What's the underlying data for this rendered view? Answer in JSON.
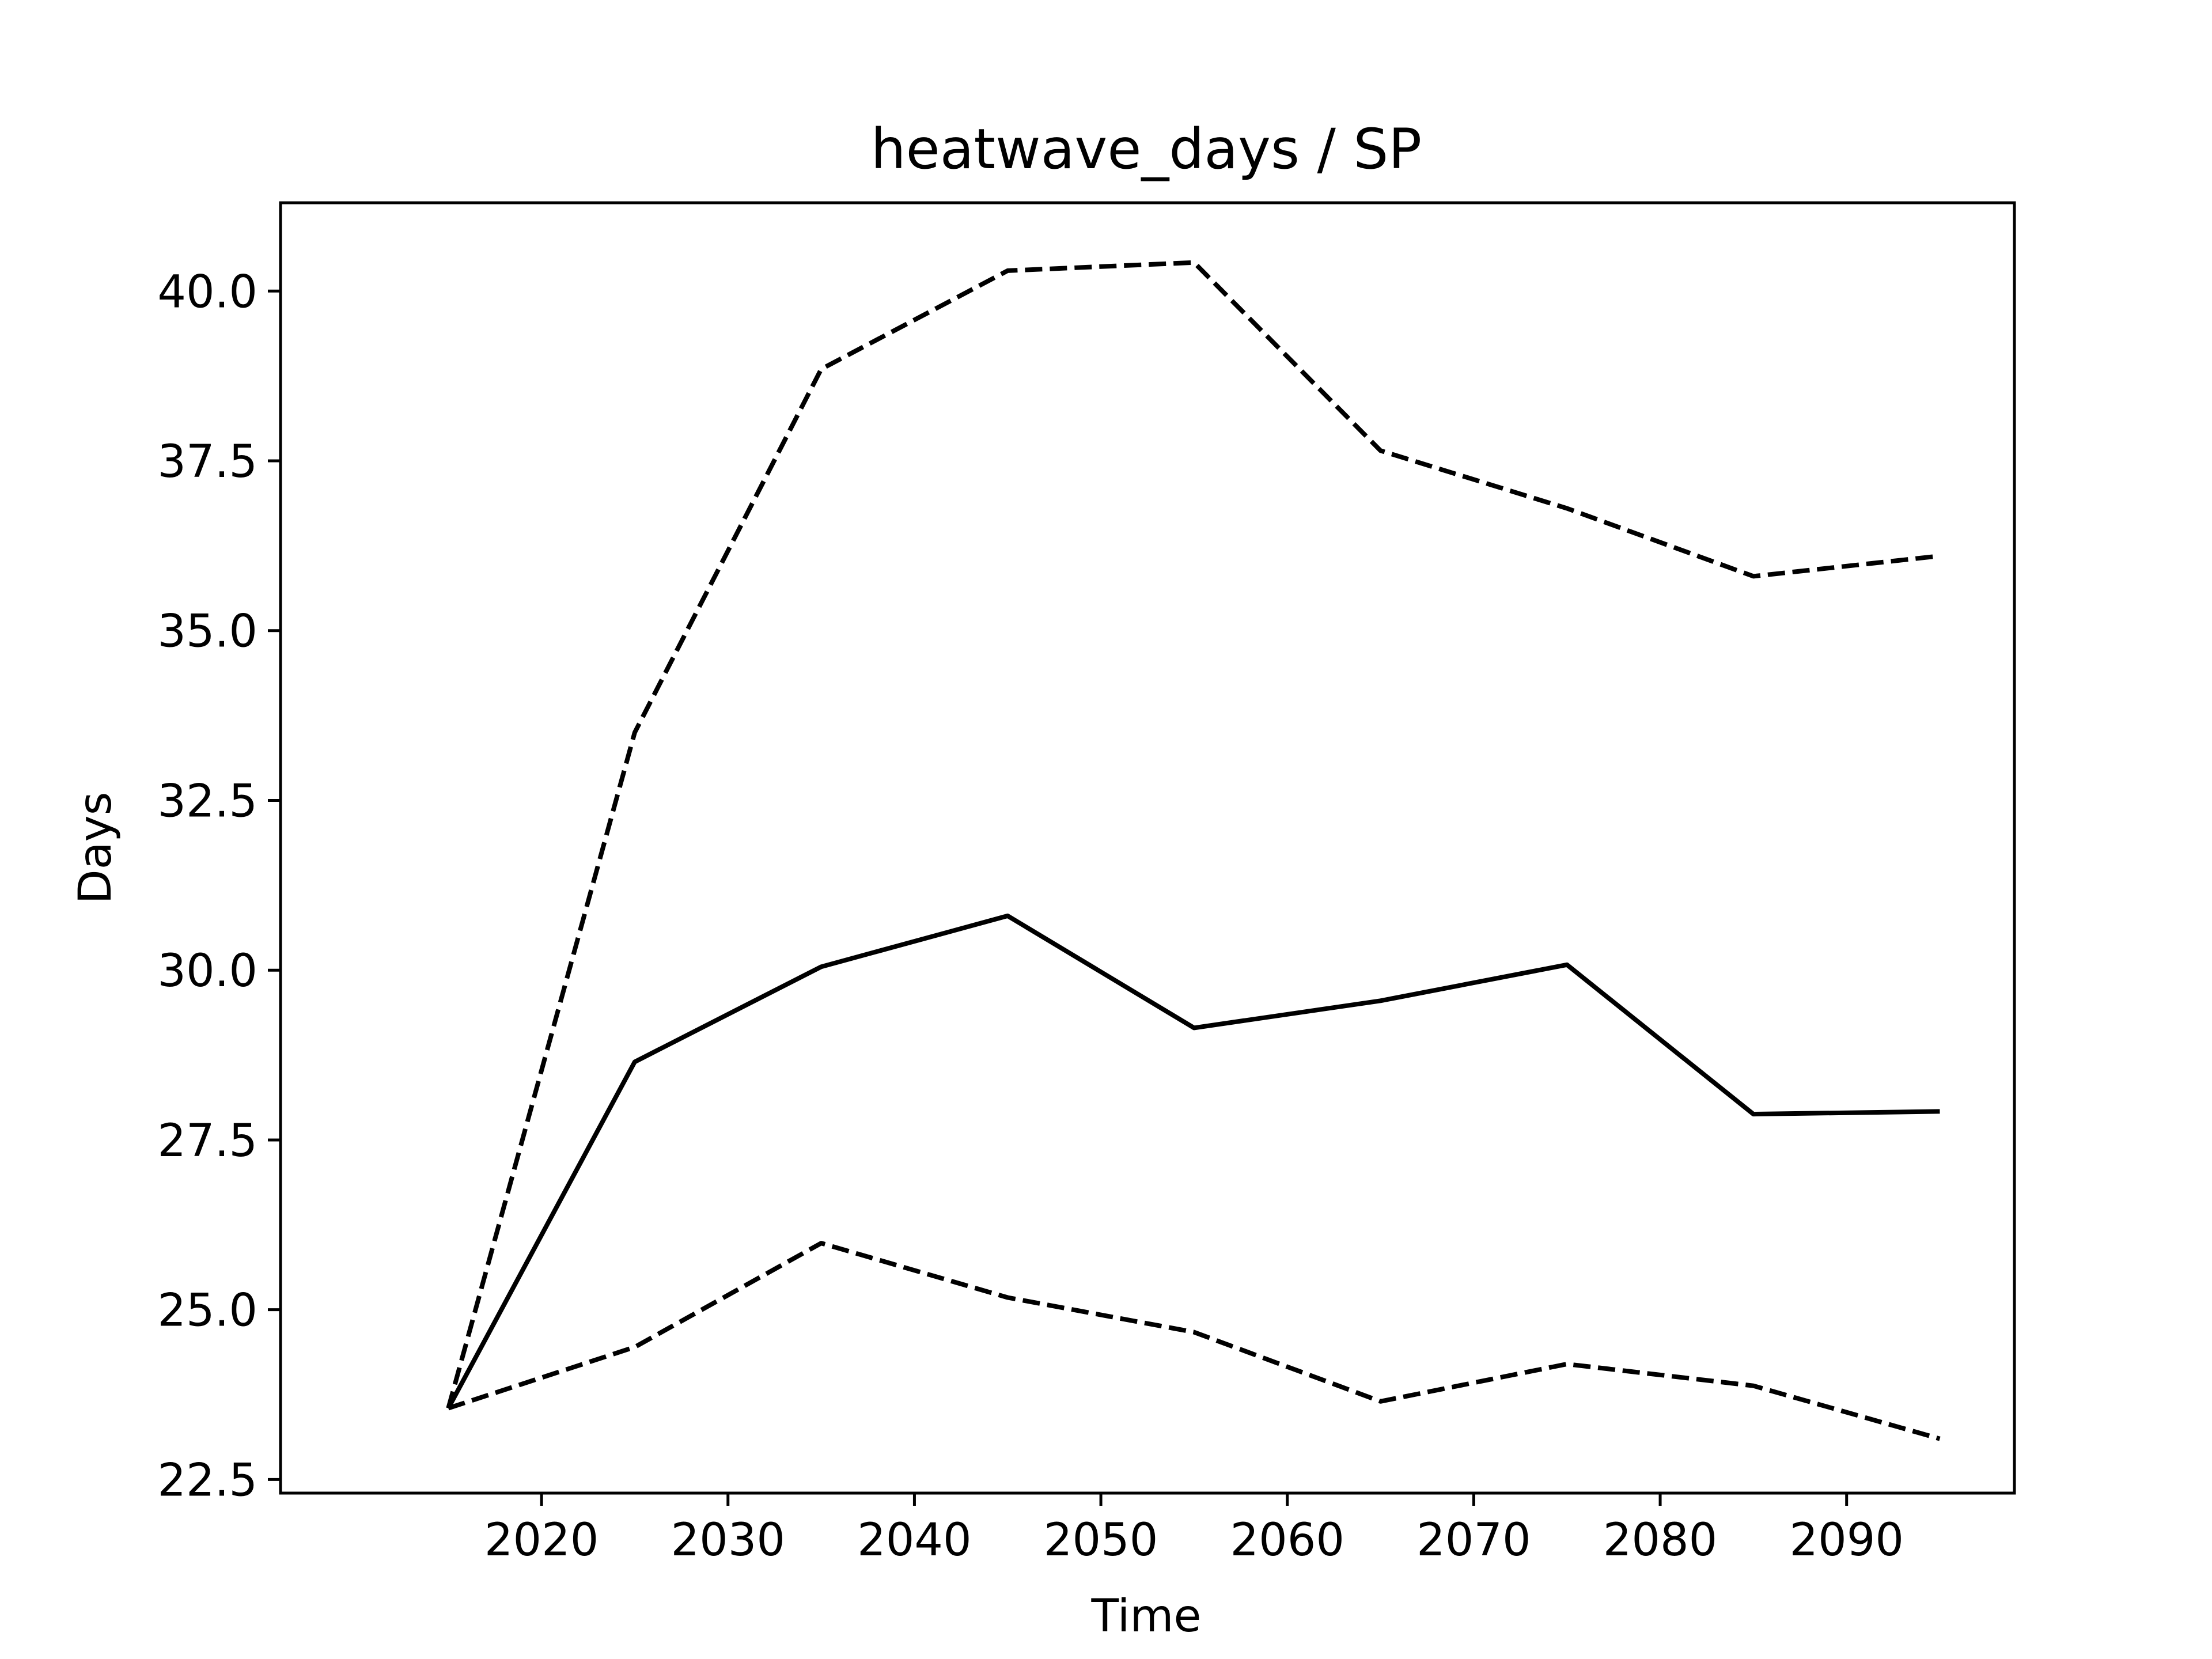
{
  "chart_data": {
    "type": "line",
    "title": "heatwave_days / SP",
    "xlabel": "Time",
    "ylabel": "Days",
    "x": [
      2015,
      2025,
      2035,
      2045,
      2055,
      2065,
      2075,
      2085,
      2095
    ],
    "xlim": [
      2006,
      2099
    ],
    "ylim": [
      22.3,
      41.3
    ],
    "xticks": [
      2020,
      2030,
      2040,
      2050,
      2060,
      2070,
      2080,
      2090
    ],
    "yticks": [
      22.5,
      25.0,
      27.5,
      30.0,
      32.5,
      35.0,
      37.5,
      40.0
    ],
    "xtick_labels": [
      "2020",
      "2030",
      "2040",
      "2050",
      "2060",
      "2070",
      "2080",
      "2090"
    ],
    "ytick_labels": [
      "22.5",
      "25.0",
      "27.5",
      "30.0",
      "32.5",
      "35.0",
      "37.5",
      "40.0"
    ],
    "grid": false,
    "series": [
      {
        "values": [
          23.55,
          33.5,
          38.85,
          40.3,
          40.42,
          37.65,
          36.8,
          35.8,
          36.1
        ],
        "style": "dashed",
        "color": "#000000"
      },
      {
        "values": [
          23.55,
          28.65,
          30.05,
          30.8,
          29.15,
          29.55,
          30.08,
          27.88,
          27.92
        ],
        "style": "solid",
        "color": "#000000"
      },
      {
        "values": [
          23.55,
          24.45,
          25.98,
          25.18,
          24.67,
          23.65,
          24.2,
          23.88,
          23.1
        ],
        "style": "dashed",
        "color": "#000000"
      }
    ]
  }
}
